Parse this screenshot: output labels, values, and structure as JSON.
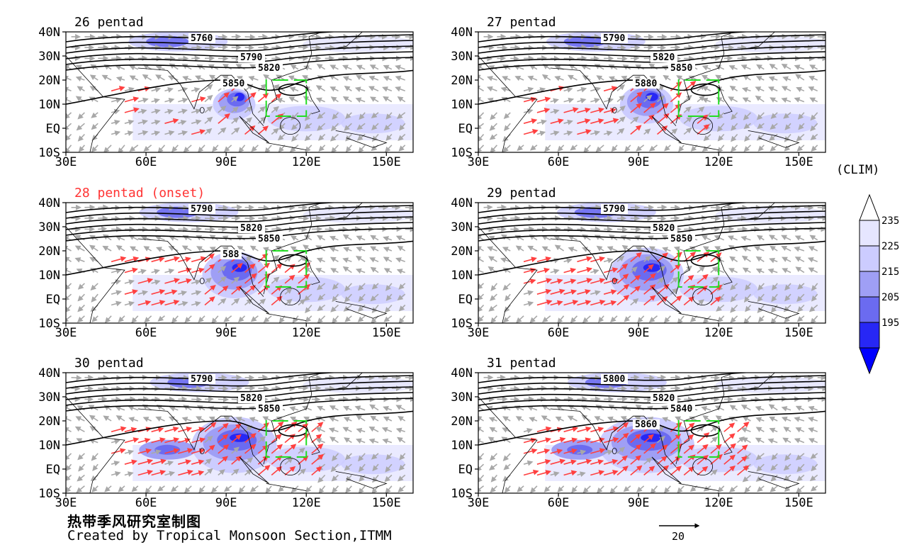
{
  "panels": [
    {
      "title": "26 pentad",
      "title_color": "#000000",
      "contours": [
        "5760",
        "5790",
        "5820",
        "5850"
      ],
      "onset": false
    },
    {
      "title": "27 pentad",
      "title_color": "#000000",
      "contours": [
        "5790",
        "5820",
        "5850",
        "5880"
      ],
      "onset": false
    },
    {
      "title": "28 pentad (onset)",
      "title_color": "#ff3333",
      "contours": [
        "5790",
        "5820",
        "5850",
        "588"
      ],
      "onset": true
    },
    {
      "title": "29 pentad",
      "title_color": "#000000",
      "contours": [
        "5790",
        "5820",
        "5850"
      ],
      "onset": false
    },
    {
      "title": "30 pentad",
      "title_color": "#000000",
      "contours": [
        "5790",
        "5820",
        "5850"
      ],
      "onset": false
    },
    {
      "title": "31 pentad",
      "title_color": "#000000",
      "contours": [
        "5800",
        "5820",
        "5840",
        "5860"
      ],
      "onset": false
    }
  ],
  "axes": {
    "lat_labels": [
      "40N",
      "30N",
      "20N",
      "10N",
      "EQ",
      "10S"
    ],
    "lon_labels": [
      "30E",
      "60E",
      "90E",
      "120E",
      "150E"
    ]
  },
  "colorbar": {
    "title": "(CLIM)",
    "levels": [
      "235",
      "225",
      "215",
      "205",
      "195"
    ],
    "colors": [
      "#e6e6ff",
      "#ccccff",
      "#9f9ff5",
      "#6b6bf0",
      "#2727f5",
      "#0000ff"
    ]
  },
  "colors": {
    "wind_vector": "#a8a8a8",
    "strong_wind_vector": "#ff4040",
    "box_outline": "#22dd22",
    "contour": "#000000"
  },
  "footer": {
    "chinese": "热带季风研究室制图",
    "credit": "Created by Tropical Monsoon Section,ITMM"
  },
  "reference_vector": {
    "value": "20"
  }
}
